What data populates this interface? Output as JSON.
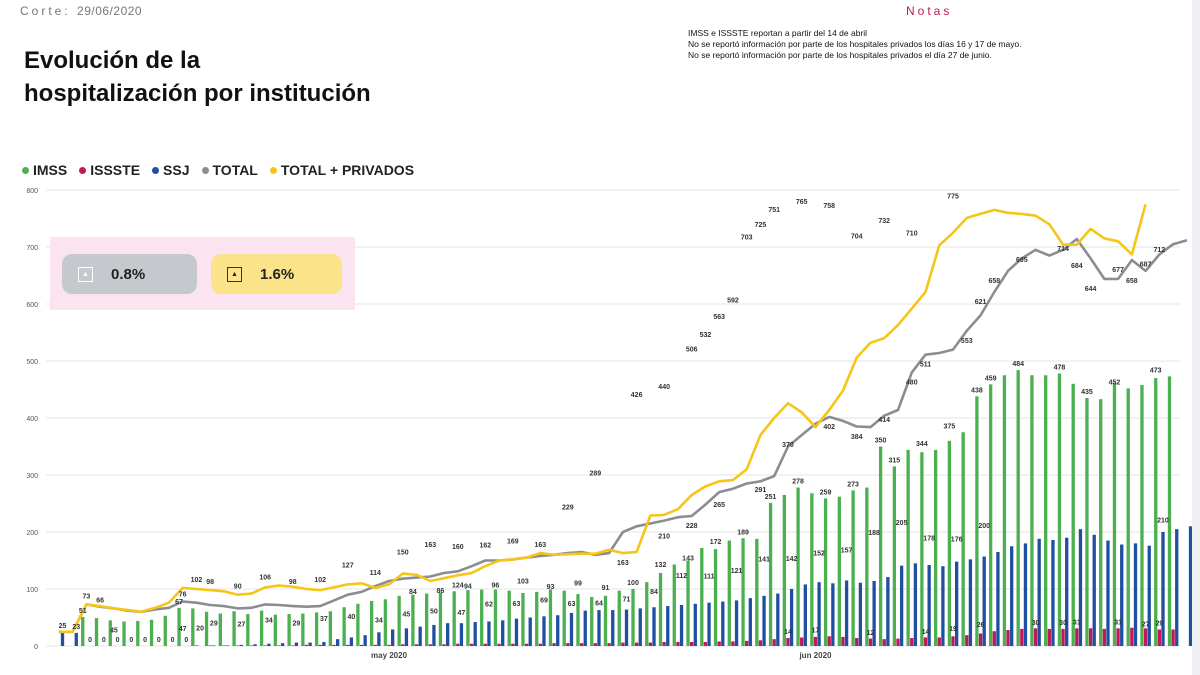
{
  "header": {
    "corte_label": "Corte:",
    "corte_date": "29/06/2020",
    "title_line1": "Evolución de la",
    "title_line2": "hospitalización por institución"
  },
  "notes": {
    "title": "Notas",
    "lines": [
      "IMSS e ISSSTE reportan a partir del 14 de abril",
      "No se reportó información por parte de los hospitales privados los días 16 y 17 de mayo.",
      "No se reportó información por parte de los hospitales privados el día 27 de junio."
    ]
  },
  "legend": [
    {
      "label": "IMSS",
      "color": "#4caf50"
    },
    {
      "label": "ISSSTE",
      "color": "#c2185b"
    },
    {
      "label": "SSJ",
      "color": "#1e4fa0"
    },
    {
      "label": "TOTAL",
      "color": "#8a8d91"
    },
    {
      "label": "TOTAL + PRIVADOS",
      "color": "#f5c518"
    }
  ],
  "kpis": {
    "grey_value": "0.8%",
    "yellow_value": "1.6%",
    "icon": "triangle-up-icon"
  },
  "chart_data": {
    "type": "bar",
    "ylim": [
      0,
      800
    ],
    "yticks": [
      0,
      100,
      200,
      300,
      400,
      500,
      600,
      700,
      800
    ],
    "x_labels": [
      {
        "index": 24,
        "label": "may 2020"
      },
      {
        "index": 55,
        "label": "jun 2020"
      }
    ],
    "n": 81,
    "start_index": 2,
    "series": [
      {
        "name": "IMSS",
        "color": "#4caf50",
        "values": [
          null,
          null,
          51,
          49,
          45,
          43,
          44,
          46,
          53,
          67,
          66,
          60,
          57,
          61,
          56,
          62,
          55,
          56,
          57,
          59,
          61,
          68,
          74,
          79,
          82,
          88,
          90,
          92,
          94,
          96,
          98,
          99,
          99,
          97,
          93,
          95,
          99,
          97,
          91,
          86,
          88,
          97,
          100,
          112,
          128,
          143,
          150,
          172,
          170,
          185,
          189,
          188,
          251,
          265,
          278,
          268,
          259,
          262,
          273,
          278,
          350,
          315,
          344,
          340,
          344,
          360,
          375,
          438,
          459,
          475,
          484,
          475,
          475,
          478,
          460,
          435,
          433,
          462,
          452,
          458,
          470,
          473
        ]
      },
      {
        "name": "ISSSTE",
        "color": "#c2185b",
        "values": [
          null,
          null,
          0,
          0,
          0,
          0,
          0,
          0,
          0,
          0,
          1,
          1,
          1,
          1,
          1,
          1,
          1,
          1,
          2,
          2,
          2,
          2,
          2,
          2,
          2,
          3,
          3,
          3,
          3,
          4,
          4,
          4,
          4,
          4,
          4,
          4,
          5,
          5,
          5,
          5,
          5,
          6,
          6,
          6,
          7,
          7,
          7,
          7,
          8,
          8,
          9,
          10,
          12,
          14,
          15,
          16,
          17,
          16,
          14,
          13,
          12,
          13,
          14,
          15,
          15,
          17,
          19,
          22,
          26,
          28,
          30,
          31,
          30,
          30,
          31,
          31,
          30,
          31,
          32,
          31,
          29,
          29
        ]
      },
      {
        "name": "SSJ",
        "color": "#1e4fa0",
        "values": [
          25,
          23,
          0,
          0,
          0,
          0,
          0,
          0,
          0,
          0,
          0,
          1,
          1,
          2,
          3,
          4,
          5,
          6,
          6,
          7,
          12,
          15,
          19,
          24,
          29,
          31,
          34,
          37,
          40,
          40,
          42,
          43,
          45,
          48,
          50,
          52,
          54,
          58,
          62,
          63,
          63,
          64,
          66,
          68,
          70,
          72,
          74,
          76,
          78,
          80,
          84,
          88,
          92,
          100,
          108,
          112,
          110,
          115,
          111,
          114,
          121,
          141,
          145,
          142,
          140,
          148,
          152,
          157,
          165,
          175,
          180,
          188,
          186,
          190,
          205,
          195,
          185,
          178,
          180,
          176,
          200,
          205,
          210
        ]
      },
      {
        "name": "TOTAL",
        "color": "#8a8d91",
        "values": [
          25,
          25,
          73,
          69,
          66,
          62,
          60,
          64,
          67,
          78,
          76,
          72,
          70,
          66,
          67,
          73,
          72,
          70,
          69,
          70,
          80,
          90,
          95,
          105,
          114,
          118,
          120,
          122,
          128,
          131,
          140,
          150,
          150,
          152,
          155,
          158,
          160,
          163,
          165,
          160,
          163,
          200,
          210,
          215,
          220,
          226,
          228,
          248,
          270,
          276,
          285,
          289,
          298,
          350,
          370,
          390,
          402,
          395,
          385,
          384,
          404,
          414,
          480,
          511,
          514,
          520,
          553,
          580,
          621,
          658,
          680,
          695,
          685,
          695,
          714,
          680,
          644,
          644,
          677,
          658,
          687,
          705,
          712
        ]
      },
      {
        "name": "TOTAL + PRIVADOS",
        "color": "#f5c518",
        "values": [
          25,
          25,
          73,
          70,
          66,
          63,
          60,
          67,
          76,
          102,
          100,
          98,
          96,
          90,
          92,
          103,
          106,
          104,
          100,
          98,
          103,
          108,
          110,
          102,
          108,
          127,
          125,
          114,
          119,
          124,
          128,
          140,
          150,
          152,
          155,
          163,
          160,
          161,
          162,
          162,
          169,
          163,
          165,
          229,
          230,
          240,
          265,
          280,
          289,
          291,
          310,
          370,
          400,
          426,
          410,
          384,
          414,
          448,
          506,
          532,
          540,
          563,
          592,
          621,
          703,
          725,
          751,
          758,
          765,
          760,
          758,
          755,
          740,
          704,
          704,
          732,
          715,
          710,
          687,
          775
        ]
      }
    ],
    "labels": {
      "IMSS": [
        [
          2,
          51
        ],
        [
          9,
          67
        ],
        [
          26,
          84
        ],
        [
          28,
          86
        ],
        [
          30,
          94
        ],
        [
          32,
          96
        ],
        [
          34,
          103
        ],
        [
          36,
          93
        ],
        [
          38,
          99
        ],
        [
          40,
          91
        ],
        [
          42,
          100
        ],
        [
          44,
          132
        ],
        [
          46,
          143
        ],
        [
          48,
          172
        ],
        [
          50,
          189
        ],
        [
          52,
          251
        ],
        [
          54,
          278
        ],
        [
          56,
          259
        ],
        [
          58,
          273
        ],
        [
          60,
          350
        ],
        [
          61,
          315
        ],
        [
          63,
          344
        ],
        [
          65,
          375
        ],
        [
          67,
          438
        ],
        [
          68,
          459
        ],
        [
          70,
          484
        ],
        [
          73,
          478
        ],
        [
          75,
          435
        ],
        [
          77,
          452
        ],
        [
          80,
          473
        ]
      ],
      "ISSSTE": [
        [
          53,
          14
        ],
        [
          55,
          17
        ],
        [
          59,
          12
        ],
        [
          63,
          14
        ],
        [
          65,
          19
        ],
        [
          67,
          26
        ],
        [
          71,
          30
        ],
        [
          73,
          30
        ],
        [
          74,
          31
        ],
        [
          77,
          31
        ],
        [
          79,
          27
        ],
        [
          80,
          29
        ]
      ],
      "SSJ": [
        [
          0,
          25
        ],
        [
          1,
          23
        ],
        [
          10,
          20
        ],
        [
          11,
          29
        ],
        [
          13,
          27
        ],
        [
          15,
          34
        ],
        [
          17,
          29
        ],
        [
          19,
          37
        ],
        [
          21,
          40
        ],
        [
          23,
          34
        ],
        [
          25,
          45
        ],
        [
          27,
          50
        ],
        [
          29,
          47
        ],
        [
          31,
          62
        ],
        [
          33,
          63
        ],
        [
          35,
          69
        ],
        [
          37,
          63
        ],
        [
          39,
          64
        ],
        [
          41,
          71
        ],
        [
          43,
          84
        ],
        [
          45,
          112
        ],
        [
          47,
          111
        ],
        [
          49,
          121
        ],
        [
          51,
          141
        ],
        [
          53,
          142
        ],
        [
          55,
          152
        ],
        [
          57,
          157
        ],
        [
          59,
          188
        ],
        [
          61,
          205
        ],
        [
          63,
          178
        ],
        [
          65,
          176
        ],
        [
          67,
          200
        ],
        [
          80,
          210
        ]
      ],
      "TOTAL": [
        [
          4,
          45
        ],
        [
          9,
          47
        ],
        [
          29,
          124
        ],
        [
          41,
          163
        ],
        [
          44,
          210
        ],
        [
          46,
          228
        ],
        [
          48,
          265
        ],
        [
          51,
          291
        ],
        [
          53,
          370
        ],
        [
          56,
          402
        ],
        [
          58,
          384
        ],
        [
          60,
          414
        ],
        [
          62,
          480
        ],
        [
          63,
          511
        ],
        [
          66,
          553
        ],
        [
          67,
          621
        ],
        [
          68,
          658
        ],
        [
          70,
          695
        ],
        [
          73,
          714
        ],
        [
          74,
          684
        ],
        [
          75,
          644
        ],
        [
          77,
          677
        ],
        [
          78,
          658
        ],
        [
          79,
          687
        ],
        [
          80,
          712
        ]
      ],
      "TOTAL + PRIVADOS": [
        [
          2,
          73
        ],
        [
          3,
          66
        ],
        [
          9,
          76
        ],
        [
          10,
          102
        ],
        [
          11,
          98
        ],
        [
          13,
          90
        ],
        [
          15,
          106
        ],
        [
          17,
          98
        ],
        [
          19,
          102
        ],
        [
          21,
          127
        ],
        [
          23,
          114
        ],
        [
          25,
          150
        ],
        [
          27,
          163
        ],
        [
          29,
          160
        ],
        [
          31,
          162
        ],
        [
          33,
          169
        ],
        [
          35,
          163
        ],
        [
          37,
          229
        ],
        [
          39,
          289
        ],
        [
          42,
          426
        ],
        [
          44,
          440
        ],
        [
          46,
          506
        ],
        [
          47,
          532
        ],
        [
          48,
          563
        ],
        [
          49,
          592
        ],
        [
          50,
          703
        ],
        [
          51,
          725
        ],
        [
          52,
          751
        ],
        [
          54,
          765
        ],
        [
          56,
          758
        ],
        [
          58,
          704
        ],
        [
          60,
          732
        ],
        [
          62,
          710
        ],
        [
          65,
          775
        ]
      ]
    },
    "zero_labels_ssj": [
      2,
      3,
      4,
      5,
      6,
      7,
      8,
      9
    ]
  }
}
